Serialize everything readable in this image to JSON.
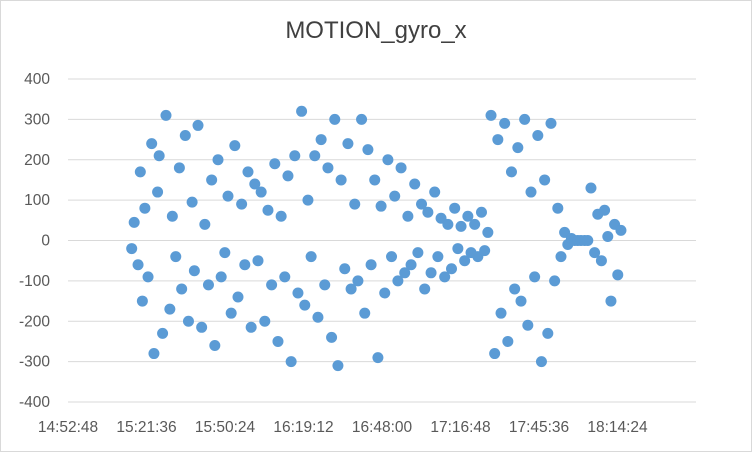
{
  "chart_data": {
    "type": "scatter",
    "title": "MOTION_gyro_x",
    "xlabel": "",
    "ylabel": "",
    "x_unit": "time of day (hh:mm:ss)",
    "xlim": [
      "14:52:48",
      "18:43:12"
    ],
    "ylim": [
      -400,
      400
    ],
    "x_tick_labels": [
      "14:52:48",
      "15:21:36",
      "15:50:24",
      "16:19:12",
      "16:48:00",
      "17:16:48",
      "17:45:36",
      "18:14:24"
    ],
    "y_tick_labels": [
      "400",
      "300",
      "200",
      "100",
      "0",
      "-100",
      "-200",
      "-300",
      "-400"
    ],
    "grid": "horizontal",
    "legend": "none",
    "marker_color": "#5b9bd5",
    "series": [
      {
        "x": [
          "15:16:10",
          "15:17:05",
          "15:18:30",
          "15:19:20",
          "15:20:05",
          "15:21:00",
          "15:22:10",
          "15:23:30",
          "15:24:20",
          "15:25:40",
          "15:26:15",
          "15:27:30",
          "15:28:45",
          "15:30:10",
          "15:31:05",
          "15:32:20",
          "15:33:40",
          "15:34:30",
          "15:35:50",
          "15:37:00",
          "15:38:20",
          "15:39:10",
          "15:40:30",
          "15:41:50",
          "15:43:00",
          "15:44:20",
          "15:45:30",
          "15:46:40",
          "15:47:50",
          "15:49:00",
          "15:50:20",
          "15:51:30",
          "15:52:40",
          "15:54:00",
          "15:55:10",
          "15:56:30",
          "15:57:40",
          "15:58:50",
          "16:00:00",
          "16:01:20",
          "16:02:30",
          "16:03:40",
          "16:05:00",
          "16:06:10",
          "16:07:30",
          "16:08:40",
          "16:09:50",
          "16:11:00",
          "16:12:20",
          "16:13:30",
          "16:14:40",
          "16:16:00",
          "16:17:10",
          "16:18:30",
          "16:19:40",
          "16:20:50",
          "16:22:00",
          "16:23:20",
          "16:24:30",
          "16:25:40",
          "16:27:00",
          "16:28:10",
          "16:29:30",
          "16:30:40",
          "16:31:50",
          "16:33:00",
          "16:34:20",
          "16:35:30",
          "16:36:40",
          "16:38:00",
          "16:39:10",
          "16:40:30",
          "16:41:40",
          "16:42:50",
          "16:44:00",
          "16:45:20",
          "16:46:30",
          "16:47:40",
          "16:49:00",
          "16:50:10",
          "16:51:30",
          "16:52:40",
          "16:53:50",
          "16:55:00",
          "16:56:20",
          "16:57:30",
          "16:58:40",
          "17:00:00",
          "17:01:10",
          "17:02:30",
          "17:03:40",
          "17:04:50",
          "17:06:00",
          "17:07:20",
          "17:08:30",
          "17:09:40",
          "17:11:00",
          "17:12:10",
          "17:13:30",
          "17:14:40",
          "17:15:50",
          "17:17:00",
          "17:18:20",
          "17:19:30",
          "17:20:40",
          "17:22:00",
          "17:23:10",
          "17:24:30",
          "17:25:40",
          "17:26:50",
          "17:28:00",
          "17:29:20",
          "17:30:30",
          "17:31:40",
          "17:33:00",
          "17:34:10",
          "17:35:30",
          "17:36:40",
          "17:37:50",
          "17:39:00",
          "17:40:20",
          "17:41:30",
          "17:42:40",
          "17:44:00",
          "17:45:10",
          "17:46:30",
          "17:47:40",
          "17:48:50",
          "17:50:00",
          "17:51:20",
          "17:52:30",
          "17:53:40",
          "17:55:00",
          "17:56:10",
          "17:57:30",
          "17:58:40",
          "17:59:50",
          "18:01:00",
          "18:02:20",
          "18:03:30",
          "18:04:40",
          "18:06:00",
          "18:07:10",
          "18:08:30",
          "18:09:40",
          "18:10:50",
          "18:12:00",
          "18:13:20",
          "18:14:30",
          "18:15:40"
        ],
        "y": [
          -20,
          45,
          -60,
          170,
          -150,
          80,
          -90,
          240,
          -280,
          120,
          210,
          -230,
          310,
          -170,
          60,
          -40,
          180,
          -120,
          260,
          -200,
          95,
          -75,
          285,
          -215,
          40,
          -110,
          150,
          -260,
          200,
          -90,
          -30,
          110,
          -180,
          235,
          -140,
          90,
          -60,
          170,
          -215,
          140,
          -50,
          120,
          -200,
          75,
          -110,
          190,
          -250,
          60,
          -90,
          160,
          -300,
          210,
          -130,
          320,
          -160,
          100,
          -40,
          210,
          -190,
          250,
          -110,
          180,
          -240,
          300,
          -310,
          150,
          -70,
          240,
          -120,
          90,
          -100,
          300,
          -180,
          225,
          -60,
          150,
          -290,
          85,
          -130,
          200,
          -40,
          110,
          -100,
          180,
          -80,
          60,
          -60,
          140,
          -30,
          90,
          -120,
          70,
          -80,
          120,
          -40,
          55,
          -90,
          40,
          -70,
          80,
          -20,
          35,
          -50,
          60,
          -30,
          40,
          -40,
          70,
          -25,
          20,
          310,
          -280,
          250,
          -180,
          290,
          -250,
          170,
          -120,
          230,
          -150,
          300,
          -210,
          120,
          -90,
          260,
          -300,
          150,
          -230,
          290,
          -100,
          80,
          -40,
          20,
          -10,
          5,
          0,
          0,
          0,
          0,
          0,
          130,
          -30,
          65,
          -50,
          75,
          10,
          -150,
          40,
          -85,
          25
        ]
      }
    ]
  }
}
